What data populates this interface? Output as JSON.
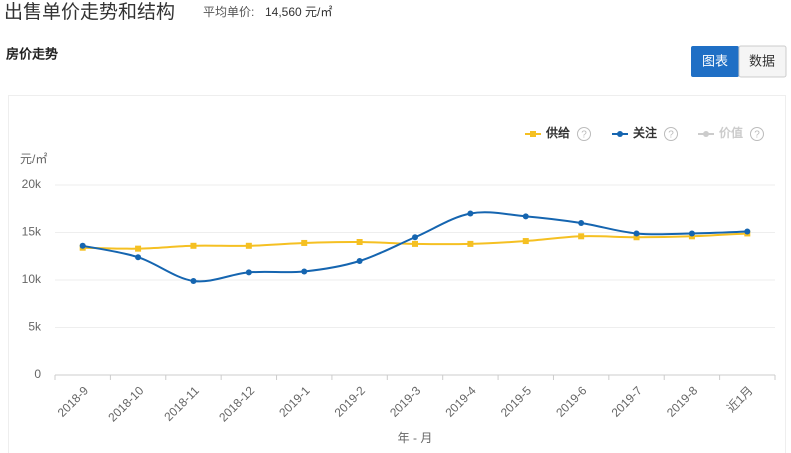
{
  "header": {
    "title": "出售单价走势和结构",
    "avg_label": "平均单价:",
    "avg_value": "14,560 元/㎡",
    "section": "房价走势",
    "tabs": [
      "图表",
      "数据"
    ]
  },
  "chart_data": {
    "type": "line",
    "categories": [
      "2018-9",
      "2018-10",
      "2018-11",
      "2018-12",
      "2019-1",
      "2019-2",
      "2019-3",
      "2019-4",
      "2019-5",
      "2019-6",
      "2019-7",
      "2019-8",
      "近1月"
    ],
    "series": [
      {
        "name": "供给",
        "color": "#f5c022",
        "values": [
          13400,
          13300,
          13600,
          13600,
          13900,
          14000,
          13800,
          13800,
          14100,
          14600,
          14500,
          14600,
          14900
        ]
      },
      {
        "name": "关注",
        "color": "#1565b0",
        "values": [
          13600,
          12400,
          9900,
          10800,
          10900,
          12000,
          14500,
          17000,
          16700,
          16000,
          14900,
          14900,
          15100
        ]
      },
      {
        "name": "价值",
        "color": "#cccccc",
        "values": [
          null,
          null,
          null,
          null,
          null,
          null,
          null,
          null,
          null,
          null,
          null,
          null,
          null
        ]
      }
    ],
    "ylabel": "元/㎡",
    "xlabel": "年 - 月",
    "ylim": [
      0,
      20000
    ],
    "yticks": [
      0,
      {
        "value": 5000,
        "label": "5k"
      },
      {
        "value": 10000,
        "label": "10k"
      },
      {
        "value": 15000,
        "label": "15k"
      },
      {
        "value": 20000,
        "label": "20k"
      }
    ],
    "grid": true
  }
}
